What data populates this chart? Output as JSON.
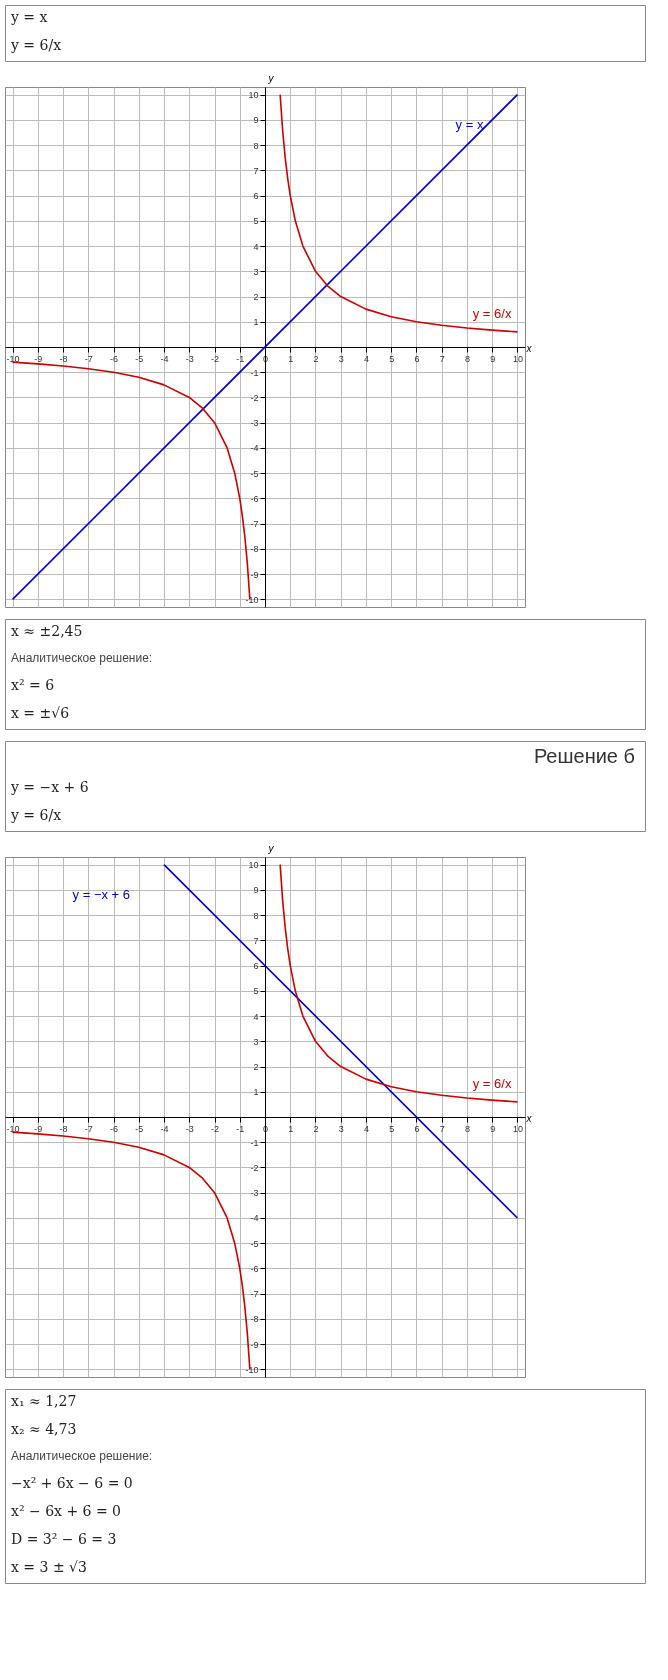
{
  "chart_data": [
    {
      "type": "line",
      "title": "y = x",
      "subtitle": "y = 6/x",
      "series": [
        {
          "name": "y = x",
          "color": "#0000cc",
          "x": [
            -10,
            10
          ],
          "values": [
            -10,
            10
          ]
        },
        {
          "name": "y = 6/x",
          "color": "#cc0000",
          "x": [
            -10,
            -9,
            -8,
            -7,
            -6,
            -5,
            -4,
            -3,
            -2.5,
            -2,
            -1.5,
            -1.2,
            -1,
            -0.9,
            -0.8,
            -0.7,
            -0.6,
            0,
            0.6,
            0.7,
            0.8,
            0.9,
            1,
            1.2,
            1.5,
            2,
            2.5,
            3,
            4,
            5,
            6,
            7,
            8,
            9,
            10
          ],
          "values": [
            -0.6,
            -0.67,
            -0.75,
            -0.86,
            -1,
            -1.2,
            -1.5,
            -2,
            -2.4,
            -3,
            -4,
            -5,
            -6,
            -6.67,
            -7.5,
            -8.57,
            -10,
            null,
            10,
            8.57,
            7.5,
            6.67,
            6,
            5,
            4,
            3,
            2.4,
            2,
            1.5,
            1.2,
            1,
            0.86,
            0.75,
            0.67,
            0.6
          ]
        }
      ],
      "xlim": [
        -10.3,
        10.3
      ],
      "ylim": [
        -10.3,
        10.3
      ],
      "xticks": [
        -10,
        -9,
        -8,
        -7,
        -6,
        -5,
        -4,
        -3,
        -2,
        -1,
        0,
        1,
        2,
        3,
        4,
        5,
        6,
        7,
        8,
        9,
        10
      ],
      "yticks": [
        -10,
        -9,
        -8,
        -7,
        -6,
        -5,
        -4,
        -3,
        -2,
        -1,
        1,
        2,
        3,
        4,
        5,
        6,
        7,
        8,
        9,
        10
      ],
      "grid": true,
      "xlabel": "x",
      "ylabel": "y",
      "annotations": [
        "x ≈ ±2,45",
        "Аналитическое решение:",
        "x² = 6",
        "x = ±√6"
      ]
    },
    {
      "type": "line",
      "title": "Решение б",
      "subtitle": "y = −x + 6\ny = 6/x",
      "series": [
        {
          "name": "y = −x + 6",
          "color": "#0000cc",
          "x": [
            -4,
            10
          ],
          "values": [
            10,
            -4
          ]
        },
        {
          "name": "y = 6/x",
          "color": "#cc0000",
          "x": [
            -10,
            -9,
            -8,
            -7,
            -6,
            -5,
            -4,
            -3,
            -2.5,
            -2,
            -1.5,
            -1.2,
            -1,
            -0.9,
            -0.8,
            -0.7,
            -0.6,
            0,
            0.6,
            0.7,
            0.8,
            0.9,
            1,
            1.2,
            1.5,
            2,
            2.5,
            3,
            4,
            5,
            6,
            7,
            8,
            9,
            10
          ],
          "values": [
            -0.6,
            -0.67,
            -0.75,
            -0.86,
            -1,
            -1.2,
            -1.5,
            -2,
            -2.4,
            -3,
            -4,
            -5,
            -6,
            -6.67,
            -7.5,
            -8.57,
            -10,
            null,
            10,
            8.57,
            7.5,
            6.67,
            6,
            5,
            4,
            3,
            2.4,
            2,
            1.5,
            1.2,
            1,
            0.86,
            0.75,
            0.67,
            0.6
          ]
        }
      ],
      "xlim": [
        -10.3,
        10.3
      ],
      "ylim": [
        -10.3,
        10.3
      ],
      "xticks": [
        -10,
        -9,
        -8,
        -7,
        -6,
        -5,
        -4,
        -3,
        -2,
        -1,
        0,
        1,
        2,
        3,
        4,
        5,
        6,
        7,
        8,
        9,
        10
      ],
      "yticks": [
        -10,
        -9,
        -8,
        -7,
        -6,
        -5,
        -4,
        -3,
        -2,
        -1,
        1,
        2,
        3,
        4,
        5,
        6,
        7,
        8,
        9,
        10
      ],
      "grid": true,
      "xlabel": "x",
      "ylabel": "y",
      "annotations": [
        "x₁ ≈ 1,27",
        "x₂ ≈ 4,73",
        "Аналитическое решение:",
        "−x² + 6x − 6 = 0",
        "x² − 6x + 6 = 0",
        "D = 3² − 6 = 3",
        "x = 3 ± √3"
      ]
    }
  ]
}
